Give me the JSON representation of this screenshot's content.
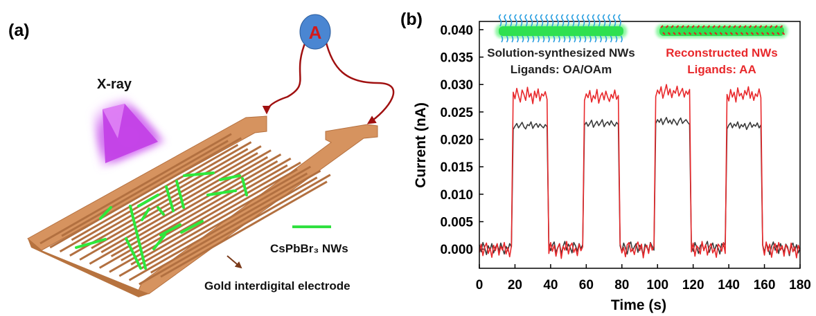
{
  "diagram": {
    "panel_label": "(a)",
    "meter_label": "A",
    "source_label": "X-ray",
    "nanowire_label": "CsPbBr₃ NWs",
    "electrode_label": "Gold interdigital electrode"
  },
  "chart_data": {
    "type": "line",
    "panel_label": "(b)",
    "x_label": "Time (s)",
    "y_label": "Current (nA)",
    "x": [
      0,
      1,
      2,
      3,
      4,
      5,
      6,
      7,
      8,
      9,
      10,
      11,
      12,
      13,
      14,
      15,
      16,
      17,
      18,
      19,
      20,
      21,
      22,
      23,
      24,
      25,
      26,
      27,
      28,
      29,
      30,
      31,
      32,
      33,
      34,
      35,
      36,
      37,
      38,
      39,
      40,
      41,
      42,
      43,
      44,
      45,
      46,
      47,
      48,
      49,
      50,
      51,
      52,
      53,
      54,
      55,
      56,
      57,
      58,
      59,
      60,
      61,
      62,
      63,
      64,
      65,
      66,
      67,
      68,
      69,
      70,
      71,
      72,
      73,
      74,
      75,
      76,
      77,
      78,
      79,
      80,
      81,
      82,
      83,
      84,
      85,
      86,
      87,
      88,
      89,
      90,
      91,
      92,
      93,
      94,
      95,
      96,
      97,
      98,
      99,
      100,
      101,
      102,
      103,
      104,
      105,
      106,
      107,
      108,
      109,
      110,
      111,
      112,
      113,
      114,
      115,
      116,
      117,
      118,
      119,
      120,
      121,
      122,
      123,
      124,
      125,
      126,
      127,
      128,
      129,
      130,
      131,
      132,
      133,
      134,
      135,
      136,
      137,
      138,
      139,
      140,
      141,
      142,
      143,
      144,
      145,
      146,
      147,
      148,
      149,
      150,
      151,
      152,
      153,
      154,
      155,
      156,
      157,
      158,
      159,
      160,
      161,
      162,
      163,
      164,
      165,
      166,
      167,
      168,
      169,
      170,
      171,
      172,
      173,
      174,
      175,
      176,
      177,
      178,
      179,
      180
    ],
    "series": [
      {
        "name": "Solution-synthesized NWs",
        "color": "#3a3a3a",
        "values": [
          0.0008,
          -0.0005,
          0.0012,
          0.0002,
          -0.001,
          0.0006,
          -0.0002,
          0.001,
          -0.0007,
          0.0003,
          0.0009,
          -0.0004,
          0.0011,
          0.0001,
          -0.0009,
          0.0005,
          -0.0003,
          0.001,
          0.0004,
          0.0218,
          0.0224,
          0.0229,
          0.0221,
          0.0226,
          0.0231,
          0.0223,
          0.0219,
          0.0227,
          0.0225,
          0.0232,
          0.022,
          0.0226,
          0.0229,
          0.0222,
          0.0228,
          0.0224,
          0.0221,
          0.0227,
          0.0223,
          0.0011,
          -0.0003,
          0.0007,
          0.0013,
          -0.0006,
          0.0002,
          0.001,
          -0.0008,
          0.0005,
          0.0014,
          -0.0002,
          0.0009,
          0.0003,
          -0.0007,
          0.0012,
          0.0006,
          -0.0004,
          0.001,
          0.0001,
          0.0008,
          0.0226,
          0.0231,
          0.0224,
          0.0229,
          0.0235,
          0.0222,
          0.0228,
          0.0233,
          0.0225,
          0.023,
          0.0236,
          0.0223,
          0.0229,
          0.0232,
          0.0226,
          0.0234,
          0.0228,
          0.0224,
          0.0231,
          0.0227,
          0.0006,
          -0.0005,
          0.0011,
          0.0002,
          -0.0009,
          0.0008,
          0.0013,
          -0.0003,
          0.0004,
          0.001,
          -0.0006,
          0.0007,
          0.0001,
          -0.0011,
          0.0009,
          0.0003,
          -0.0004,
          0.0012,
          0.0005,
          -0.0002,
          0.0229,
          0.0236,
          0.0231,
          0.0238,
          0.0227,
          0.0234,
          0.024,
          0.023,
          0.0235,
          0.0228,
          0.0237,
          0.0232,
          0.0226,
          0.0234,
          0.0239,
          0.0229,
          0.0233,
          0.0236,
          0.0231,
          0.0227,
          0.0009,
          -0.0004,
          0.0012,
          0.0003,
          -0.0008,
          0.0006,
          0.001,
          -0.0002,
          0.0007,
          0.0014,
          -0.0006,
          0.0004,
          0.0011,
          -0.0003,
          0.0008,
          0.0002,
          -0.0009,
          0.001,
          0.0005,
          0.0012,
          0.0219,
          0.0226,
          0.023,
          0.0221,
          0.0228,
          0.0224,
          0.0232,
          0.022,
          0.0227,
          0.0223,
          0.0229,
          0.0218,
          0.0225,
          0.0231,
          0.0222,
          0.0227,
          0.0224,
          0.023,
          0.0221,
          0.0226,
          0.0008,
          -0.0006,
          0.0011,
          0.0003,
          -0.001,
          0.0005,
          0.0013,
          -0.0002,
          0.0007,
          -0.0008,
          0.001,
          0.0001,
          -0.0005,
          0.0009,
          0.0004,
          -0.0012,
          0.0006,
          0.0011,
          -0.0003,
          0.0008,
          -0.0007,
          0.0002
        ]
      },
      {
        "name": "Reconstructed NWs",
        "color": "#e8282b",
        "values": [
          -0.0006,
          0.0009,
          -0.0012,
          0.0004,
          0.0011,
          -0.0008,
          0.0002,
          -0.0015,
          0.0007,
          -0.0003,
          0.001,
          -0.0011,
          0.0005,
          -0.0002,
          0.0012,
          -0.0009,
          0.0003,
          -0.0014,
          0.0006,
          0.0286,
          0.0274,
          0.0293,
          0.0279,
          0.0268,
          0.029,
          0.0282,
          0.0271,
          0.0295,
          0.0277,
          0.0284,
          0.0265,
          0.0288,
          0.0276,
          0.0292,
          0.027,
          0.0283,
          0.0279,
          0.0287,
          0.0273,
          -0.0008,
          0.0012,
          -0.0004,
          0.0007,
          -0.0013,
          0.0003,
          0.001,
          -0.0017,
          0.0005,
          -0.0002,
          0.0014,
          -0.0009,
          0.0006,
          0.0011,
          -0.0006,
          0.0002,
          -0.0012,
          0.0009,
          -0.0003,
          0.0004,
          0.0271,
          0.0283,
          0.0276,
          0.0289,
          0.0268,
          0.028,
          0.0274,
          0.0291,
          0.0266,
          0.0279,
          0.0285,
          0.0272,
          0.0288,
          0.0277,
          0.0269,
          0.0282,
          0.0275,
          0.029,
          0.0273,
          0.028,
          0.001,
          -0.0007,
          0.0003,
          -0.0014,
          0.0008,
          0.0012,
          -0.0005,
          0.0001,
          -0.001,
          0.0006,
          0.0013,
          -0.0003,
          0.0009,
          -0.0016,
          0.0004,
          0.0007,
          -0.0008,
          0.0011,
          -0.0002,
          0.0005,
          0.0278,
          0.029,
          0.0283,
          0.0296,
          0.0275,
          0.0287,
          0.03,
          0.0281,
          0.0292,
          0.0276,
          0.0289,
          0.0284,
          0.0297,
          0.0279,
          0.0286,
          0.0293,
          0.0277,
          0.0288,
          0.0282,
          0.0291,
          -0.0005,
          0.0011,
          -0.0013,
          0.0006,
          0.0002,
          -0.0009,
          0.0014,
          -0.0003,
          0.0008,
          -0.0011,
          0.0004,
          0.001,
          -0.0007,
          0.0001,
          -0.0015,
          0.0009,
          0.0005,
          -0.0004,
          0.0012,
          -0.0008,
          0.0282,
          0.027,
          0.0291,
          0.0277,
          0.0286,
          0.0268,
          0.0294,
          0.0279,
          0.0284,
          0.0273,
          0.0289,
          0.0281,
          0.0296,
          0.0275,
          0.0287,
          0.0271,
          0.0283,
          0.0278,
          0.0292,
          0.0276,
          0.0007,
          -0.0011,
          0.0013,
          -0.0004,
          0.0009,
          -0.0015,
          0.0003,
          0.001,
          -0.0007,
          0.0012,
          -0.0002,
          0.0006,
          -0.0013,
          0.0008,
          0.0001,
          -0.0009,
          0.0011,
          -0.0005,
          0.0004,
          -0.0016,
          0.0007,
          -0.0003
        ]
      }
    ],
    "annotations": [
      {
        "text": "Ligands: OA/OAm",
        "color": "#222222"
      },
      {
        "text": "Ligands: AA",
        "color": "#e8282b"
      }
    ],
    "xlim": [
      0,
      180
    ],
    "xticks": [
      0,
      20,
      40,
      60,
      80,
      100,
      120,
      140,
      160,
      180
    ],
    "ylim": [
      -0.0035,
      0.0415
    ],
    "yticks": [
      {
        "value": 0,
        "label": "0.000"
      },
      {
        "value": 0.005,
        "label": "0.005"
      },
      {
        "value": 0.01,
        "label": "0.010"
      },
      {
        "value": 0.015,
        "label": "0.015"
      },
      {
        "value": 0.02,
        "label": "0.020"
      },
      {
        "value": 0.025,
        "label": "0.025"
      },
      {
        "value": 0.03,
        "label": "0.030"
      },
      {
        "value": 0.035,
        "label": "0.035"
      },
      {
        "value": 0.04,
        "label": "0.040"
      }
    ],
    "grid": false
  }
}
